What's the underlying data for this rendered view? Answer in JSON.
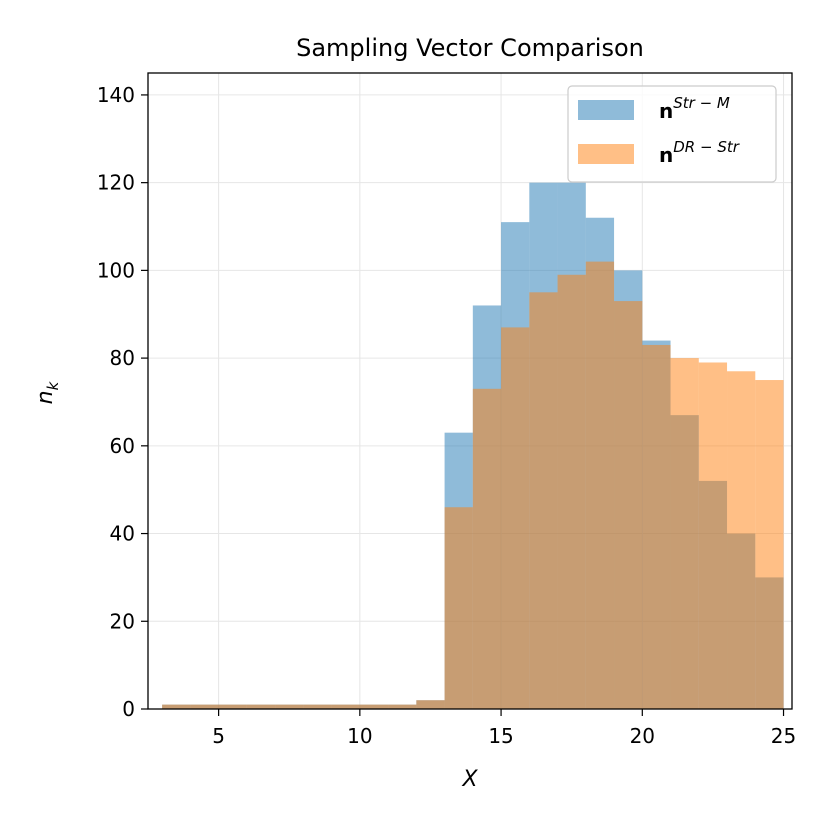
{
  "chart_data": {
    "type": "bar",
    "subtype": "overlaid-histogram",
    "title": "Sampling Vector Comparison",
    "xlabel": "X",
    "ylabel": "n",
    "ylabel_subscript": "k",
    "xlim": [
      2.5,
      25.3
    ],
    "ylim": [
      0,
      145
    ],
    "xticks": [
      5,
      10,
      15,
      20,
      25
    ],
    "yticks": [
      0,
      20,
      40,
      60,
      80,
      100,
      120,
      140
    ],
    "grid": true,
    "legend_position": "top-right",
    "bin_width": 1,
    "bin_starts": [
      3,
      4,
      5,
      6,
      7,
      8,
      9,
      10,
      11,
      12,
      13,
      14,
      15,
      16,
      17,
      18,
      19,
      20,
      21,
      22,
      23,
      24
    ],
    "series": [
      {
        "name_main": "n",
        "name_sup": "Str − M",
        "color": "#1f77b4",
        "opacity": 0.5,
        "values": [
          1,
          1,
          1,
          1,
          1,
          1,
          1,
          1,
          1,
          2,
          63,
          92,
          111,
          120,
          120,
          112,
          100,
          84,
          67,
          52,
          40,
          30
        ]
      },
      {
        "name_main": "n",
        "name_sup": "DR − Str",
        "color": "#ff7f0e",
        "opacity": 0.5,
        "values": [
          1,
          1,
          1,
          1,
          1,
          1,
          1,
          1,
          1,
          2,
          46,
          73,
          87,
          95,
          99,
          102,
          93,
          83,
          80,
          79,
          77,
          75
        ]
      }
    ]
  }
}
